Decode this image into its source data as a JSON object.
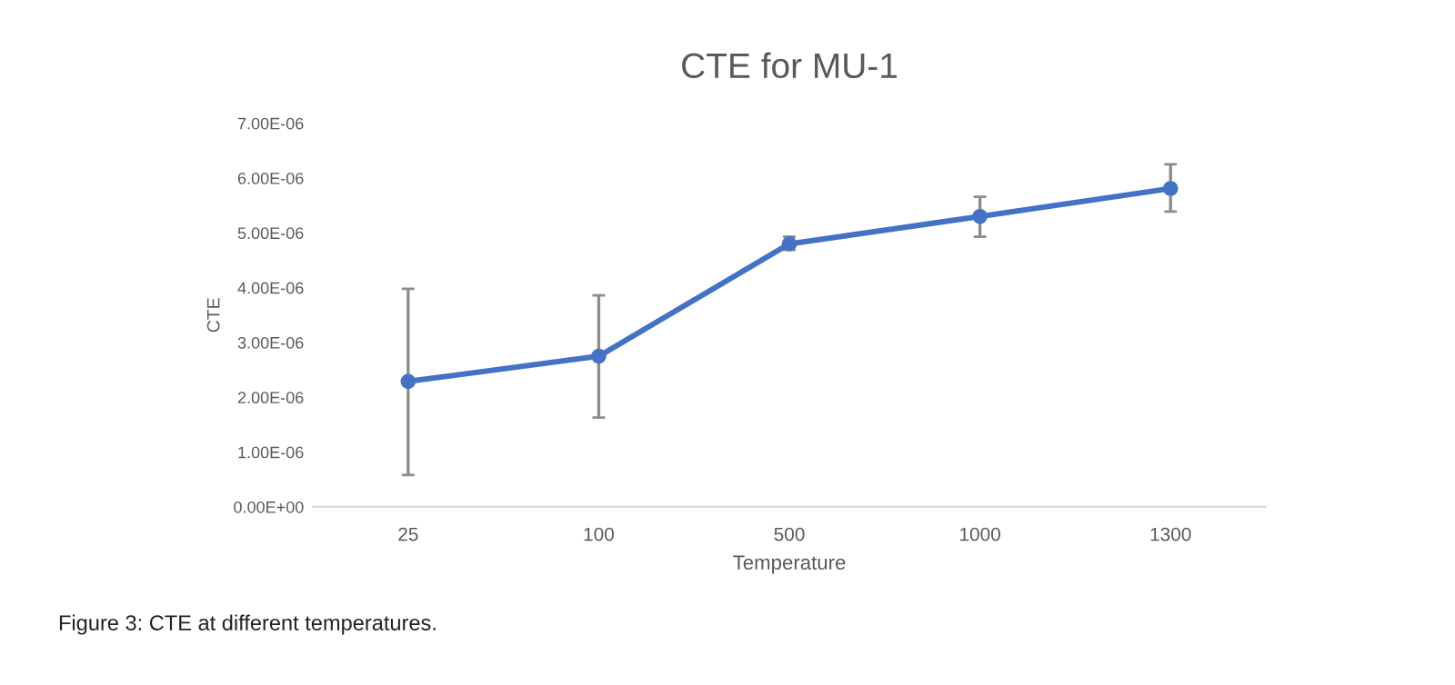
{
  "chart_data": {
    "type": "line",
    "title": "CTE for MU-1",
    "xlabel": "Temperature",
    "ylabel": "CTE",
    "categories": [
      "25",
      "100",
      "500",
      "1000",
      "1300"
    ],
    "series": [
      {
        "color": "#4472c4",
        "values": [
          2.29e-06,
          2.75e-06,
          4.8e-06,
          5.3e-06,
          5.81e-06
        ],
        "errors": [
          [
            5.8e-07,
            3.98e-06
          ],
          [
            1.63e-06,
            3.86e-06
          ],
          [
            4.69e-06,
            4.93e-06
          ],
          [
            4.93e-06,
            5.66e-06
          ],
          [
            5.39e-06,
            6.25e-06
          ]
        ]
      }
    ],
    "ylim": [
      0,
      7e-06
    ],
    "yticks": [
      {
        "value": 0,
        "label": "0.00E+00"
      },
      {
        "value": 1e-06,
        "label": "1.00E-06"
      },
      {
        "value": 2e-06,
        "label": "2.00E-06"
      },
      {
        "value": 3e-06,
        "label": "3.00E-06"
      },
      {
        "value": 4e-06,
        "label": "4.00E-06"
      },
      {
        "value": 5e-06,
        "label": "5.00E-06"
      },
      {
        "value": 6e-06,
        "label": "6.00E-06"
      },
      {
        "value": 7e-06,
        "label": "7.00E-06"
      }
    ],
    "marker": "circle",
    "line_style": "solid",
    "grid": false,
    "legend": false,
    "annotations": [
      "Figure 3: CTE at different temperatures."
    ]
  }
}
